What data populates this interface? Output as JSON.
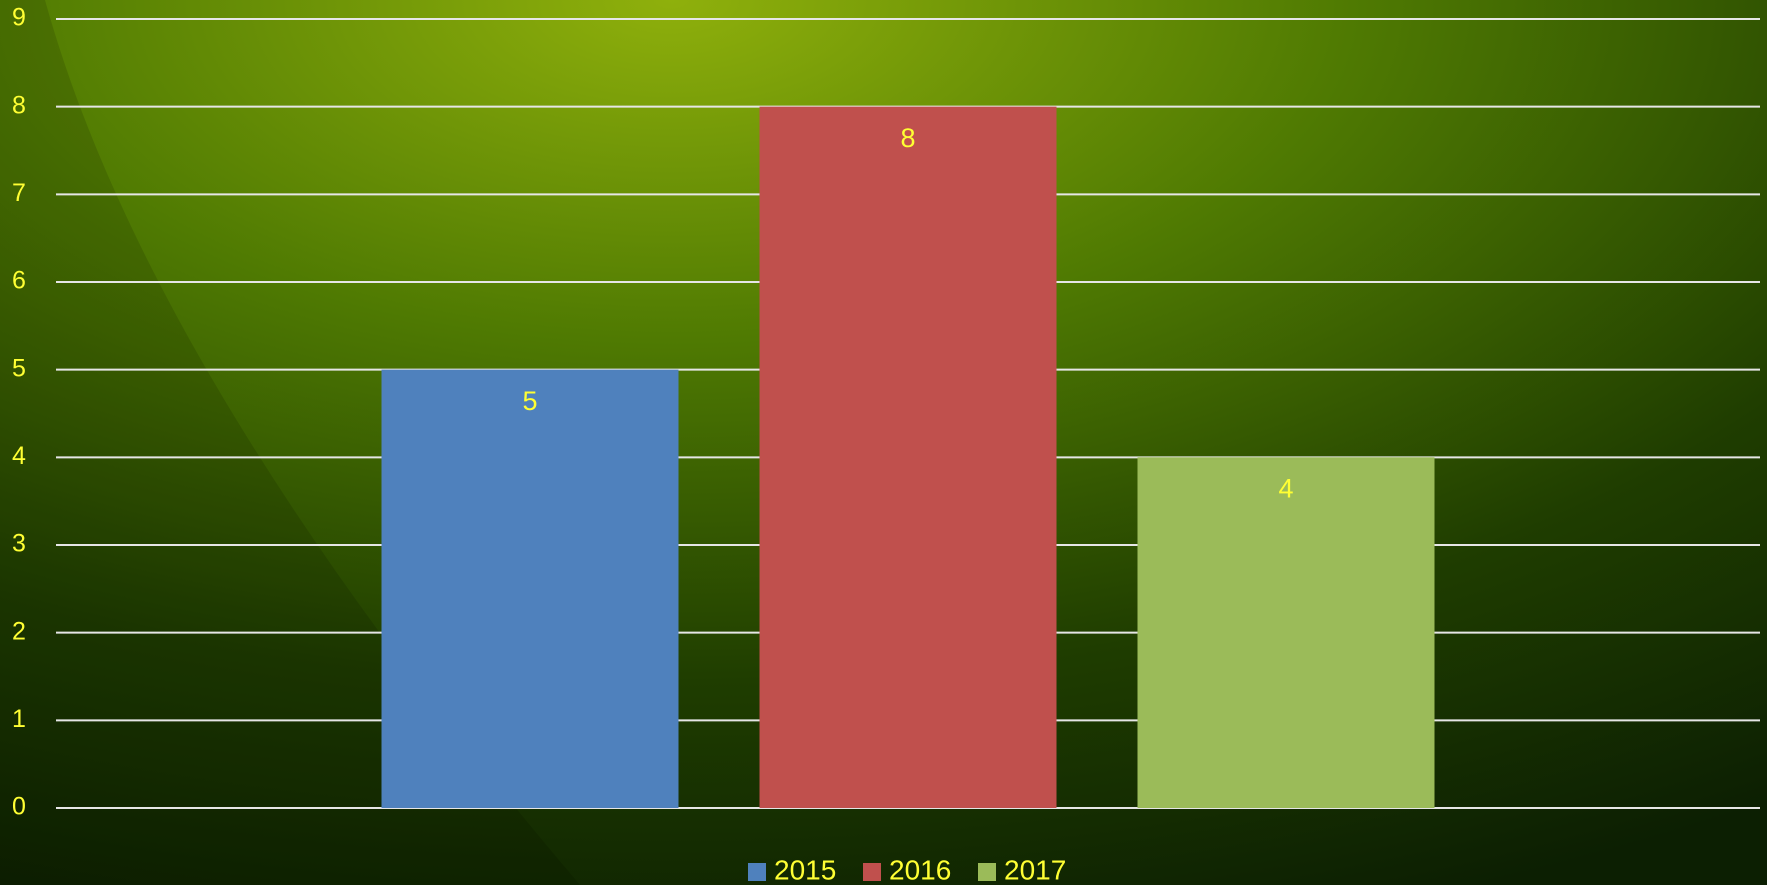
{
  "chart_data": {
    "type": "bar",
    "categories": [
      null
    ],
    "series": [
      {
        "name": "2015",
        "color": "#4f81bd",
        "values": [
          5
        ]
      },
      {
        "name": "2016",
        "color": "#c0504d",
        "values": [
          8
        ]
      },
      {
        "name": "2017",
        "color": "#9bbb59",
        "values": [
          4
        ]
      }
    ],
    "ylim": [
      0,
      9
    ],
    "yticks": [
      0,
      1,
      2,
      3,
      4,
      5,
      6,
      7,
      8,
      9
    ],
    "grid": true,
    "legend": "bottom"
  }
}
